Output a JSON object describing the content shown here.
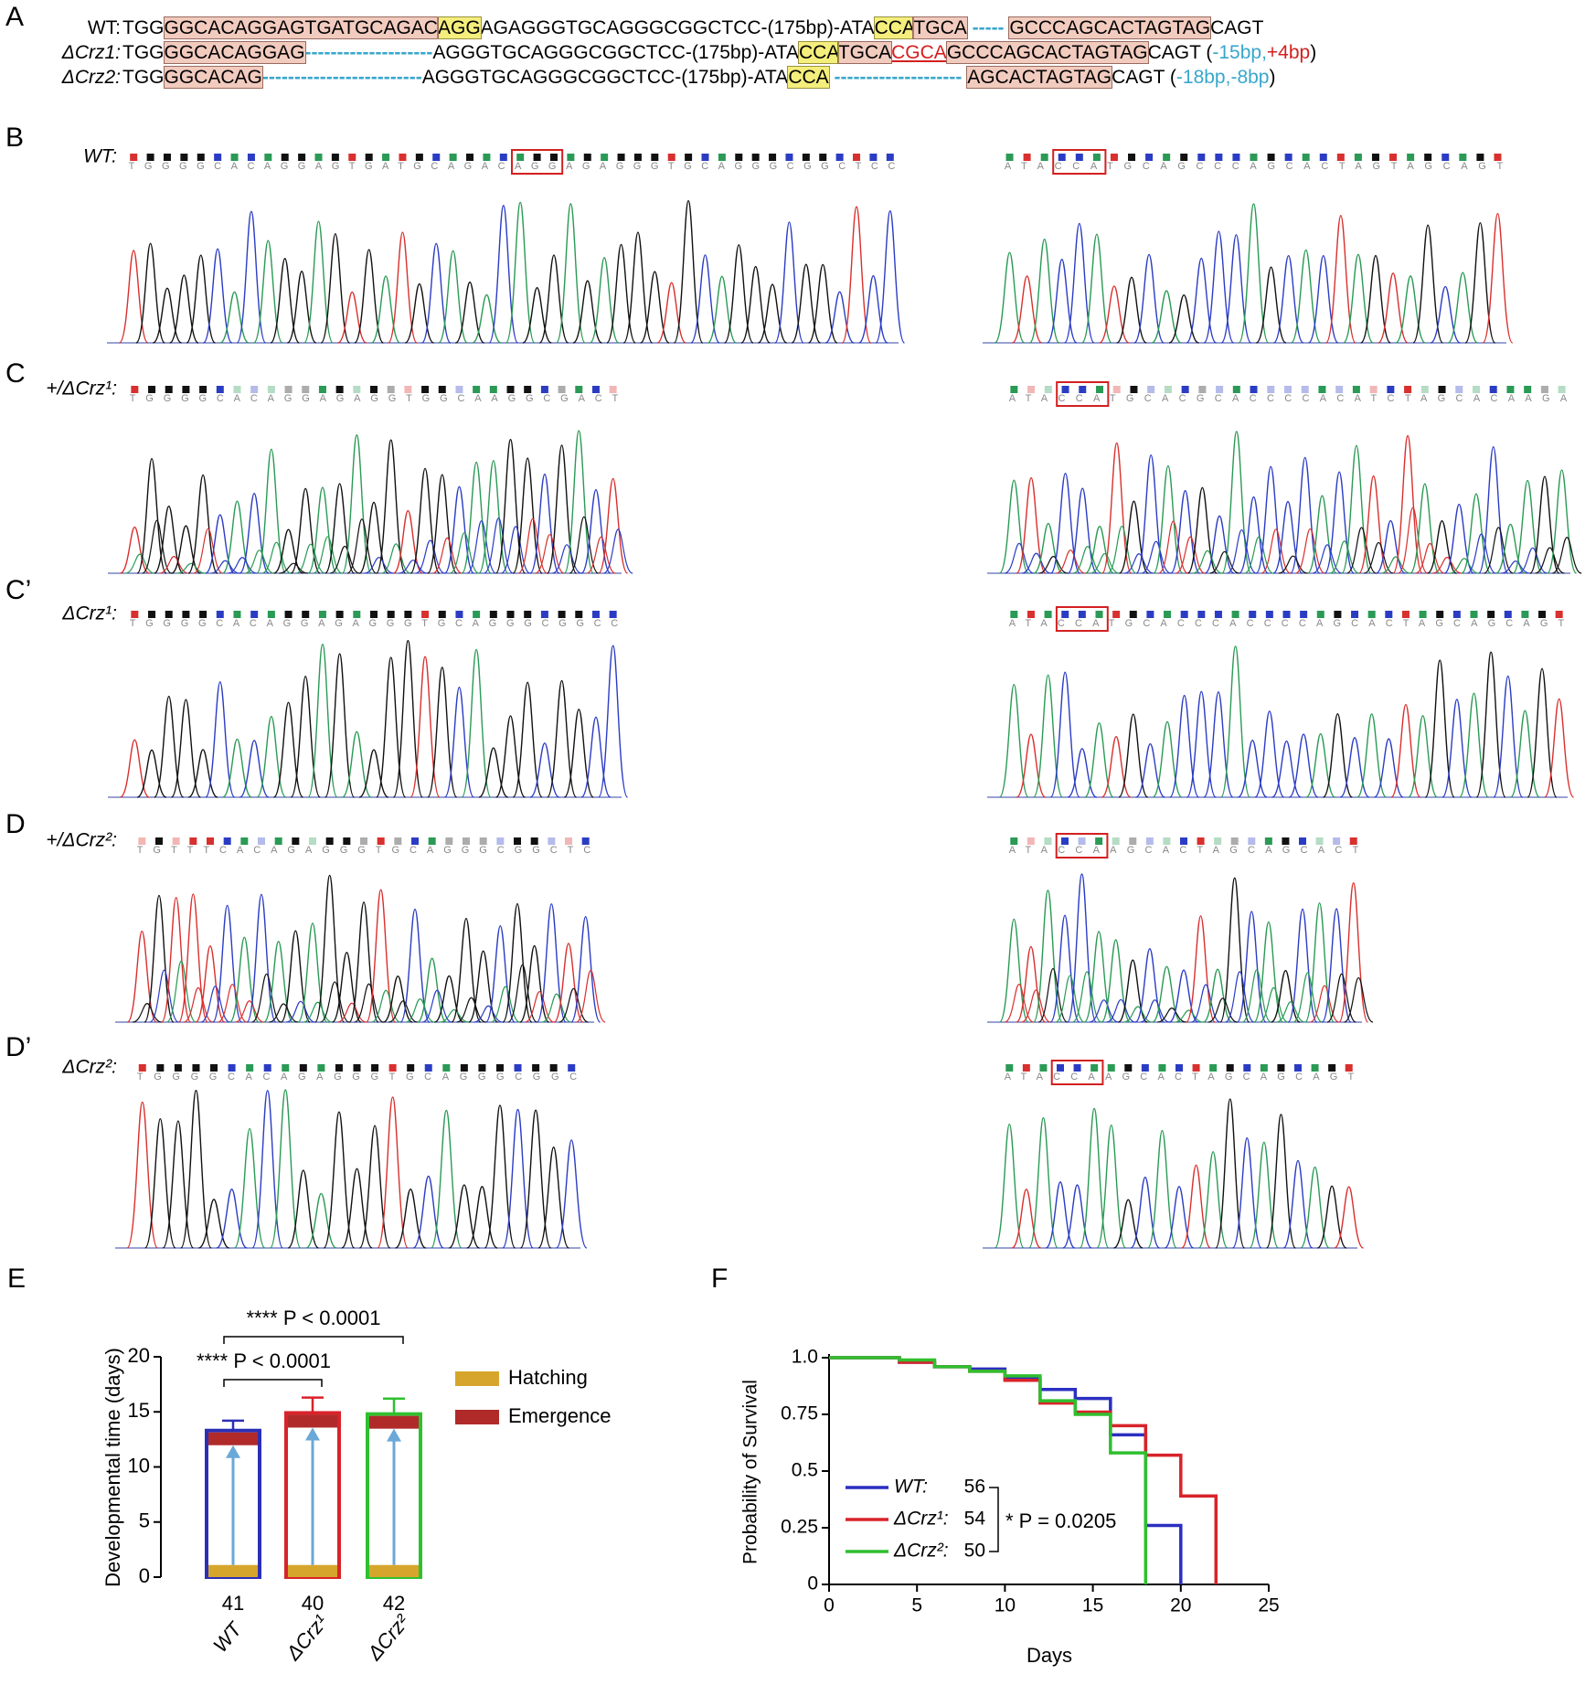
{
  "panel_a": {
    "letter": "A",
    "rows": [
      {
        "label": "WT:",
        "segments": [
          {
            "text": "TGG",
            "style": "plain"
          },
          {
            "text": "GGCACAGGAGTGATGCAGAC",
            "style": "pink"
          },
          {
            "text": "AGG",
            "style": "yellow"
          },
          {
            "text": "AGAGGGTGCAGGGCGGCTCC-(175bp)-ATA",
            "style": "plain"
          },
          {
            "text": "CCA",
            "style": "yellow"
          },
          {
            "text": "TGCA",
            "style": "pink"
          },
          {
            "text": " ----- ",
            "style": "dash"
          },
          {
            "text": "GCCCAGCACTAGTAG",
            "style": "pink"
          },
          {
            "text": "CAGT",
            "style": "plain"
          }
        ]
      },
      {
        "label": "ΔCrz1:",
        "segments": [
          {
            "text": "TGG",
            "style": "plain"
          },
          {
            "text": "GGCACAGGAG",
            "style": "pink"
          },
          {
            "text": "--------------------",
            "style": "dash"
          },
          {
            "text": "AGGGTGCAGGGCGGCTCC-(175bp)-ATA",
            "style": "plain"
          },
          {
            "text": "CCA",
            "style": "yellow"
          },
          {
            "text": "TGCA",
            "style": "pink"
          },
          {
            "text": "CGCA",
            "style": "insert"
          },
          {
            "text": "GCCCAGCACTAGTAG",
            "style": "pink"
          },
          {
            "text": "CAGT (",
            "style": "plain"
          },
          {
            "text": "-15bp,",
            "style": "blue"
          },
          {
            "text": "+4bp",
            "style": "red"
          },
          {
            "text": ")",
            "style": "plain"
          }
        ]
      },
      {
        "label": "ΔCrz2:",
        "segments": [
          {
            "text": "TGG",
            "style": "plain"
          },
          {
            "text": "GGCACAG",
            "style": "pink"
          },
          {
            "text": "-------------------------",
            "style": "dash"
          },
          {
            "text": "AGGGTGCAGGGCGGCTCC-(175bp)-ATA",
            "style": "plain"
          },
          {
            "text": "CCA",
            "style": "yellow"
          },
          {
            "text": " -------------------- ",
            "style": "dash"
          },
          {
            "text": "AGCACTAGTAG",
            "style": "pink"
          },
          {
            "text": "CAGT (",
            "style": "plain"
          },
          {
            "text": "-18bp,-8bp",
            "style": "blue"
          },
          {
            "text": ")",
            "style": "plain"
          }
        ]
      }
    ]
  },
  "chromatograms": [
    {
      "letter": "B",
      "label": "WT:",
      "left": "TGGGGCACAGGAGTGATGCAGACAGGAGAGGGTGCAGGGCGGCTCC",
      "right": "ATACCATGCAGCCCAGCACTAGTAGCAGT"
    },
    {
      "letter": "C",
      "label": "+/ΔCrz¹:",
      "left": "TGGGGCACAGGAGAGGTGGCAAGGCGACT",
      "right": "ATACCATGCACGCACCCCACATCTAGCACAAGA"
    },
    {
      "letter": "C’",
      "label": "ΔCrz¹:",
      "left": "TGGGGCACAGGAGAGGGTGCAGGGCGGCC",
      "right": "ATACCATGCACCCACCCCAGCACTAGCAGCAGT"
    },
    {
      "letter": "D",
      "label": "+/ΔCrz²:",
      "left": "TGTTTCACAGAGGGTGCAGGGCGGCTC",
      "right": "ATACCAAGCACTAGCAGCACT"
    },
    {
      "letter": "D’",
      "label": "ΔCrz²:",
      "left": "TGGGGCACAGAGGGTGCAGGGCGGC",
      "right": "ATACCAAGCACTAGCAGCAGT"
    }
  ],
  "chart_data": [
    {
      "type": "bar",
      "letter": "E",
      "ylabel": "Developmental time (days)",
      "categories": [
        "WT",
        "ΔCrz¹",
        "ΔCrz²"
      ],
      "colors": [
        "#2b2fb5",
        "#d8232a",
        "#2fc02f"
      ],
      "n": [
        41,
        40,
        42
      ],
      "series": [
        {
          "name": "Hatching",
          "color": "#d6a62c",
          "values": [
            1.1,
            1.1,
            1.1
          ]
        },
        {
          "name": "Emergence",
          "color": "#b02a2a",
          "values": [
            13.3,
            14.9,
            14.8
          ],
          "errors": [
            0.9,
            1.4,
            1.4
          ]
        }
      ],
      "ylim": [
        0,
        20
      ],
      "yticks": [
        0,
        5,
        10,
        15,
        20
      ],
      "annotations": [
        "**** P < 0.0001",
        "**** P < 0.0001"
      ]
    },
    {
      "type": "line",
      "letter": "F",
      "step": true,
      "xlabel": "Days",
      "ylabel": "Probability of Survival",
      "xlim": [
        0,
        25
      ],
      "xticks": [
        0,
        5,
        10,
        15,
        20,
        25
      ],
      "ylim": [
        0,
        1
      ],
      "yticks": [
        0,
        0.25,
        0.5,
        0.75,
        {
          "value": 1,
          "label": "1.0"
        }
      ],
      "series": [
        {
          "name": "WT:",
          "n": 56,
          "color": "#2b2fc0",
          "x": [
            0,
            4,
            6,
            8,
            10,
            12,
            14,
            16,
            18,
            20
          ],
          "values": [
            1,
            0.98,
            0.96,
            0.95,
            0.91,
            0.86,
            0.82,
            0.66,
            0.26,
            0
          ]
        },
        {
          "name": "ΔCrz¹:",
          "n": 54,
          "color": "#d8232a",
          "x": [
            0,
            4,
            6,
            8,
            10,
            12,
            14,
            16,
            18,
            20,
            22
          ],
          "values": [
            1,
            0.98,
            0.96,
            0.94,
            0.9,
            0.8,
            0.76,
            0.7,
            0.57,
            0.39,
            0
          ]
        },
        {
          "name": "ΔCrz²:",
          "n": 50,
          "color": "#2fbf2f",
          "x": [
            0,
            4,
            6,
            8,
            10,
            12,
            14,
            16,
            18
          ],
          "values": [
            1,
            0.99,
            0.96,
            0.94,
            0.92,
            0.81,
            0.75,
            0.58,
            0
          ]
        }
      ],
      "annotations": [
        "* P = 0.0205"
      ]
    }
  ]
}
